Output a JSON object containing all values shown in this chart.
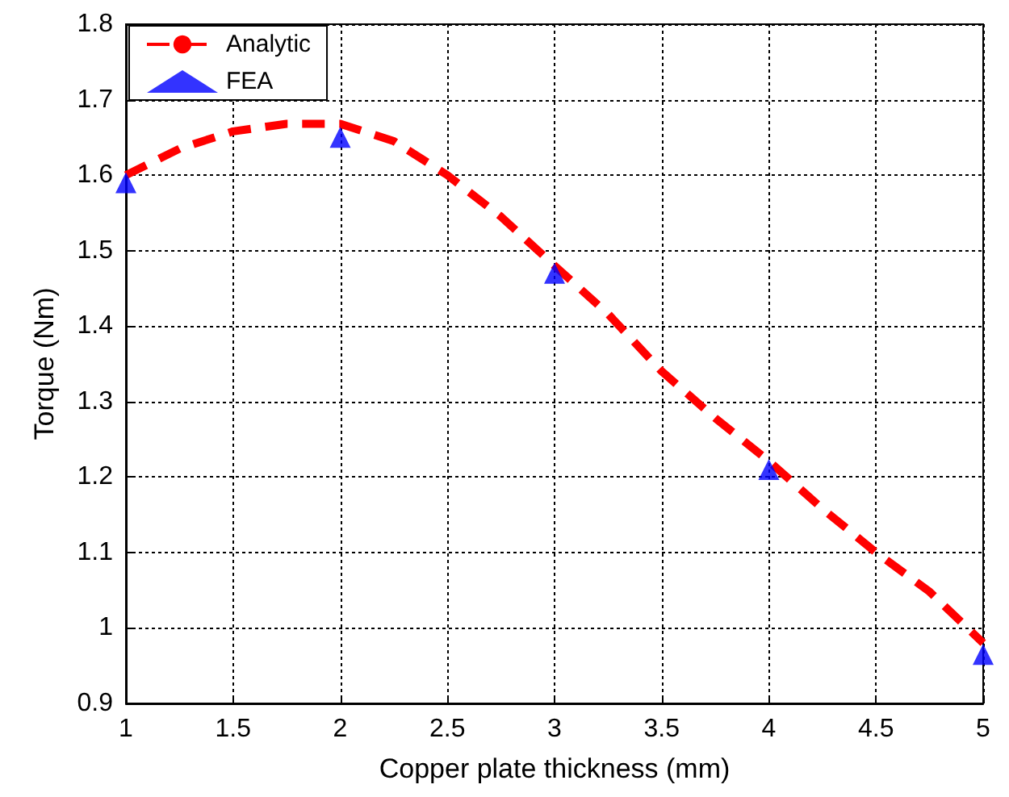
{
  "chart_data": {
    "type": "line",
    "xlabel": "Copper plate thickness (mm)",
    "ylabel": "Torque (Nm)",
    "xlim": [
      1,
      5
    ],
    "xticks": [
      1,
      1.5,
      2,
      2.5,
      3,
      3.5,
      4,
      4.5,
      5
    ],
    "ylim": [
      0.9,
      1.8
    ],
    "yticks": [
      0.9,
      1,
      1.1,
      1.2,
      1.3,
      1.4,
      1.5,
      1.6,
      1.7,
      1.8
    ],
    "grid": true,
    "legend": "top left",
    "series": [
      {
        "name": "Analytic",
        "color": "#ff0000",
        "line_style": "dashed",
        "marker": "none",
        "x": [
          1,
          1.25,
          1.5,
          1.75,
          2,
          2.25,
          2.5,
          2.75,
          3,
          3.25,
          3.5,
          3.75,
          4,
          4.25,
          4.5,
          4.75,
          5
        ],
        "values": [
          1.6,
          1.635,
          1.658,
          1.668,
          1.668,
          1.645,
          1.6,
          1.545,
          1.48,
          1.416,
          1.34,
          1.278,
          1.221,
          1.158,
          1.1,
          1.048,
          0.98
        ]
      },
      {
        "name": "FEA",
        "type": "scatter",
        "color": "#0000ff",
        "marker": "triangle",
        "x": [
          1,
          2,
          3,
          4,
          5
        ],
        "values": [
          1.59,
          1.65,
          1.47,
          1.21,
          0.965
        ]
      }
    ]
  }
}
